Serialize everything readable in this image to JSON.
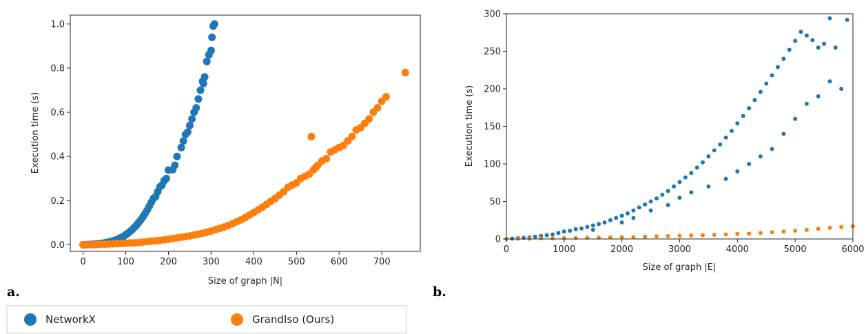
{
  "chart_data": [
    {
      "type": "scatter",
      "panel_label": "a.",
      "xlabel": "Size of graph |N|",
      "ylabel": "Execution time (s)",
      "xlim": [
        -30,
        790
      ],
      "ylim": [
        -0.03,
        1.04
      ],
      "xticks": [
        0,
        100,
        200,
        300,
        400,
        500,
        600,
        700
      ],
      "yticks": [
        0.0,
        0.2,
        0.4,
        0.6,
        0.8,
        1.0
      ],
      "ytick_labels": [
        "0.0",
        "0.2",
        "0.4",
        "0.6",
        "0.8",
        "1.0"
      ],
      "grid": false,
      "series": [
        {
          "name": "NetworkX",
          "color": "#1f77b4",
          "points": [
            [
              0,
              0.0
            ],
            [
              5,
              0.0
            ],
            [
              10,
              0.001
            ],
            [
              15,
              0.001
            ],
            [
              20,
              0.002
            ],
            [
              25,
              0.002
            ],
            [
              30,
              0.003
            ],
            [
              35,
              0.004
            ],
            [
              40,
              0.005
            ],
            [
              45,
              0.006
            ],
            [
              50,
              0.008
            ],
            [
              55,
              0.01
            ],
            [
              60,
              0.012
            ],
            [
              65,
              0.014
            ],
            [
              70,
              0.017
            ],
            [
              75,
              0.02
            ],
            [
              80,
              0.024
            ],
            [
              85,
              0.028
            ],
            [
              90,
              0.033
            ],
            [
              95,
              0.038
            ],
            [
              100,
              0.045
            ],
            [
              105,
              0.052
            ],
            [
              110,
              0.06
            ],
            [
              115,
              0.068
            ],
            [
              120,
              0.078
            ],
            [
              125,
              0.088
            ],
            [
              130,
              0.1
            ],
            [
              135,
              0.112
            ],
            [
              140,
              0.125
            ],
            [
              145,
              0.14
            ],
            [
              150,
              0.156
            ],
            [
              155,
              0.174
            ],
            [
              160,
              0.192
            ],
            [
              165,
              0.21
            ],
            [
              170,
              0.218
            ],
            [
              175,
              0.24
            ],
            [
              180,
              0.262
            ],
            [
              185,
              0.27
            ],
            [
              190,
              0.29
            ],
            [
              195,
              0.3
            ],
            [
              200,
              0.338
            ],
            [
              210,
              0.34
            ],
            [
              215,
              0.36
            ],
            [
              220,
              0.4
            ],
            [
              230,
              0.44
            ],
            [
              235,
              0.47
            ],
            [
              240,
              0.5
            ],
            [
              245,
              0.51
            ],
            [
              250,
              0.54
            ],
            [
              255,
              0.57
            ],
            [
              260,
              0.6
            ],
            [
              265,
              0.62
            ],
            [
              270,
              0.66
            ],
            [
              275,
              0.7
            ],
            [
              280,
              0.74
            ],
            [
              282,
              0.73
            ],
            [
              285,
              0.76
            ],
            [
              290,
              0.83
            ],
            [
              295,
              0.86
            ],
            [
              300,
              0.88
            ],
            [
              302,
              0.94
            ],
            [
              305,
              0.99
            ],
            [
              308,
              1.0
            ]
          ]
        },
        {
          "name": "GrandIso (Ours)",
          "color": "#ff7f0e",
          "points": [
            [
              0,
              0.0
            ],
            [
              10,
              0.0
            ],
            [
              20,
              0.001
            ],
            [
              30,
              0.001
            ],
            [
              40,
              0.002
            ],
            [
              50,
              0.002
            ],
            [
              60,
              0.003
            ],
            [
              70,
              0.004
            ],
            [
              80,
              0.005
            ],
            [
              90,
              0.006
            ],
            [
              100,
              0.007
            ],
            [
              110,
              0.008
            ],
            [
              120,
              0.009
            ],
            [
              130,
              0.01
            ],
            [
              140,
              0.012
            ],
            [
              150,
              0.014
            ],
            [
              160,
              0.016
            ],
            [
              170,
              0.018
            ],
            [
              180,
              0.02
            ],
            [
              190,
              0.022
            ],
            [
              200,
              0.025
            ],
            [
              210,
              0.028
            ],
            [
              220,
              0.031
            ],
            [
              230,
              0.034
            ],
            [
              240,
              0.037
            ],
            [
              250,
              0.04
            ],
            [
              260,
              0.044
            ],
            [
              270,
              0.048
            ],
            [
              280,
              0.052
            ],
            [
              290,
              0.057
            ],
            [
              300,
              0.062
            ],
            [
              310,
              0.068
            ],
            [
              320,
              0.074
            ],
            [
              330,
              0.08
            ],
            [
              340,
              0.087
            ],
            [
              350,
              0.095
            ],
            [
              360,
              0.104
            ],
            [
              370,
              0.113
            ],
            [
              380,
              0.123
            ],
            [
              390,
              0.134
            ],
            [
              400,
              0.146
            ],
            [
              410,
              0.158
            ],
            [
              420,
              0.17
            ],
            [
              430,
              0.183
            ],
            [
              440,
              0.197
            ],
            [
              450,
              0.21
            ],
            [
              460,
              0.225
            ],
            [
              470,
              0.24
            ],
            [
              480,
              0.26
            ],
            [
              490,
              0.27
            ],
            [
              500,
              0.28
            ],
            [
              510,
              0.3
            ],
            [
              520,
              0.31
            ],
            [
              530,
              0.32
            ],
            [
              535,
              0.49
            ],
            [
              540,
              0.34
            ],
            [
              545,
              0.35
            ],
            [
              550,
              0.36
            ],
            [
              560,
              0.38
            ],
            [
              570,
              0.39
            ],
            [
              580,
              0.42
            ],
            [
              590,
              0.43
            ],
            [
              600,
              0.44
            ],
            [
              610,
              0.45
            ],
            [
              620,
              0.47
            ],
            [
              630,
              0.49
            ],
            [
              640,
              0.52
            ],
            [
              650,
              0.53
            ],
            [
              660,
              0.55
            ],
            [
              670,
              0.57
            ],
            [
              680,
              0.6
            ],
            [
              690,
              0.62
            ],
            [
              700,
              0.65
            ],
            [
              710,
              0.67
            ],
            [
              755,
              0.78
            ]
          ]
        }
      ]
    },
    {
      "type": "scatter",
      "panel_label": "b.",
      "xlabel": "Size of graph |E|",
      "ylabel": "Execution time (s)",
      "xlim": [
        0,
        6000
      ],
      "ylim": [
        0,
        300
      ],
      "xticks": [
        0,
        1000,
        2000,
        3000,
        4000,
        5000,
        6000
      ],
      "yticks": [
        0,
        50,
        100,
        150,
        200,
        250,
        300
      ],
      "grid": false,
      "series": [
        {
          "name": "NetworkX",
          "color": "#1f77b4",
          "points": [
            [
              100,
              0.5
            ],
            [
              200,
              1
            ],
            [
              300,
              1.5
            ],
            [
              400,
              2
            ],
            [
              500,
              3
            ],
            [
              600,
              4
            ],
            [
              700,
              5
            ],
            [
              800,
              6
            ],
            [
              900,
              8
            ],
            [
              1000,
              10
            ],
            [
              1100,
              11
            ],
            [
              1200,
              13
            ],
            [
              1300,
              14
            ],
            [
              1400,
              16
            ],
            [
              1500,
              18
            ],
            [
              1600,
              20
            ],
            [
              1700,
              22
            ],
            [
              1800,
              25
            ],
            [
              1900,
              28
            ],
            [
              2000,
              31
            ],
            [
              2100,
              34
            ],
            [
              2200,
              38
            ],
            [
              2300,
              42
            ],
            [
              2400,
              46
            ],
            [
              2500,
              50
            ],
            [
              2600,
              54
            ],
            [
              2700,
              59
            ],
            [
              2800,
              64
            ],
            [
              2900,
              70
            ],
            [
              3000,
              76
            ],
            [
              3100,
              82
            ],
            [
              3200,
              88
            ],
            [
              3300,
              95
            ],
            [
              3400,
              102
            ],
            [
              3500,
              110
            ],
            [
              3600,
              118
            ],
            [
              3700,
              126
            ],
            [
              3800,
              135
            ],
            [
              3900,
              144
            ],
            [
              4000,
              154
            ],
            [
              4100,
              164
            ],
            [
              4200,
              174
            ],
            [
              4300,
              185
            ],
            [
              4400,
              196
            ],
            [
              4500,
              207
            ],
            [
              4600,
              218
            ],
            [
              4700,
              229
            ],
            [
              4800,
              240
            ],
            [
              4900,
              252
            ],
            [
              5000,
              264
            ],
            [
              5100,
              276
            ],
            [
              5200,
              271
            ],
            [
              5300,
              265
            ],
            [
              5400,
              255
            ],
            [
              5500,
              260
            ],
            [
              5600,
              294
            ],
            [
              5700,
              255
            ],
            [
              5900,
              292
            ],
            [
              1500,
              12
            ],
            [
              2000,
              22
            ],
            [
              2200,
              28
            ],
            [
              2500,
              38
            ],
            [
              2800,
              45
            ],
            [
              3000,
              55
            ],
            [
              3200,
              62
            ],
            [
              3500,
              70
            ],
            [
              3800,
              80
            ],
            [
              4000,
              90
            ],
            [
              4200,
              100
            ],
            [
              4400,
              110
            ],
            [
              4600,
              120
            ],
            [
              4800,
              140
            ],
            [
              5000,
              160
            ],
            [
              5200,
              180
            ],
            [
              5400,
              190
            ],
            [
              5600,
              210
            ],
            [
              5800,
              200
            ]
          ]
        },
        {
          "name": "GrandIso (Ours)",
          "color": "#ff7f0e",
          "points": [
            [
              0,
              0
            ],
            [
              200,
              0.2
            ],
            [
              400,
              0.4
            ],
            [
              600,
              0.6
            ],
            [
              800,
              0.8
            ],
            [
              1000,
              1
            ],
            [
              1200,
              1.2
            ],
            [
              1400,
              1.5
            ],
            [
              1600,
              1.8
            ],
            [
              1800,
              2
            ],
            [
              2000,
              2.3
            ],
            [
              2200,
              2.6
            ],
            [
              2400,
              3
            ],
            [
              2600,
              3.4
            ],
            [
              2800,
              3.8
            ],
            [
              3000,
              4.2
            ],
            [
              3200,
              4.6
            ],
            [
              3400,
              5
            ],
            [
              3600,
              5.5
            ],
            [
              3800,
              6
            ],
            [
              4000,
              6.6
            ],
            [
              4200,
              7.2
            ],
            [
              4400,
              8
            ],
            [
              4600,
              9
            ],
            [
              4800,
              10
            ],
            [
              5000,
              11
            ],
            [
              5200,
              12
            ],
            [
              5400,
              13.5
            ],
            [
              5600,
              15
            ],
            [
              5800,
              16
            ],
            [
              6000,
              17
            ]
          ]
        }
      ]
    }
  ],
  "legend": {
    "items": [
      {
        "label": "NetworkX",
        "color": "#1f77b4"
      },
      {
        "label": "GrandIso (Ours)",
        "color": "#ff7f0e"
      }
    ]
  }
}
